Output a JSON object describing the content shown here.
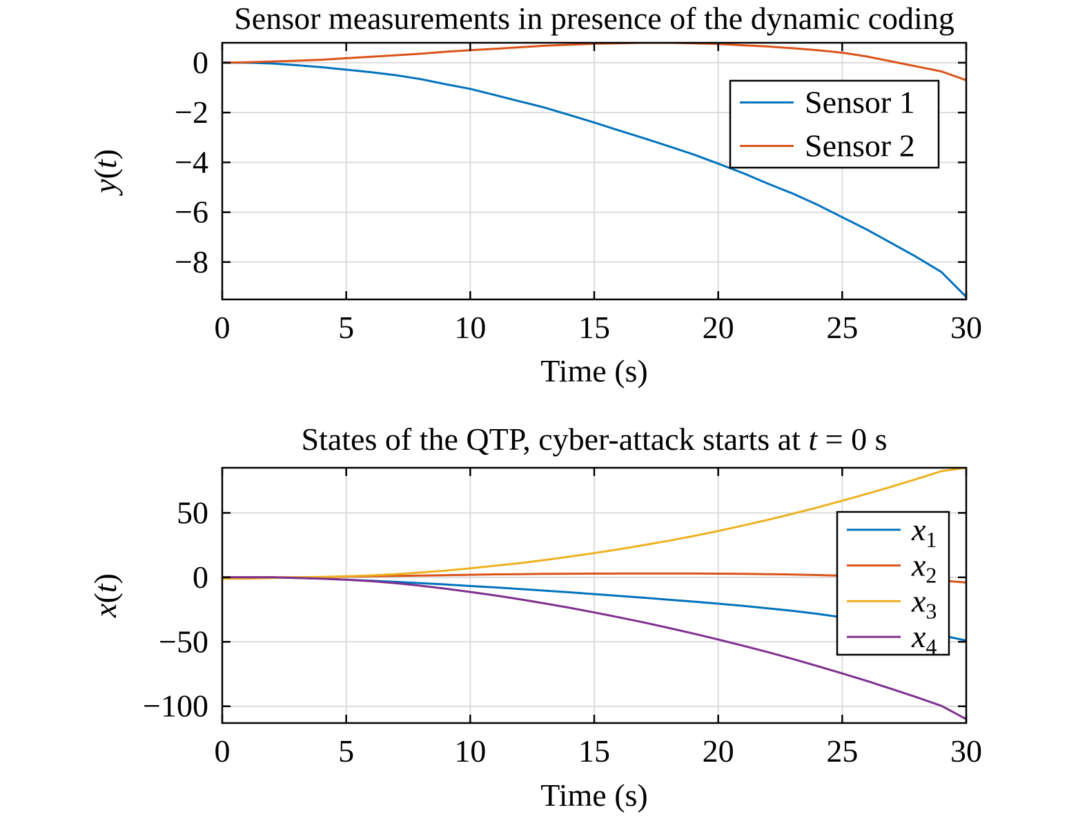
{
  "chart_data": [
    {
      "type": "line",
      "title": "Sensor measurements in presence of the dynamic coding",
      "xlabel": "Time (s)",
      "ylabel": "y(t)",
      "xlim": [
        0,
        30
      ],
      "ylim": [
        -9.5,
        0.8
      ],
      "xticks": [
        0,
        5,
        10,
        15,
        20,
        25,
        30
      ],
      "xtick_labels": [
        "0",
        "5",
        "10",
        "15",
        "20",
        "25",
        "30"
      ],
      "yticks": [
        0,
        -2,
        -4,
        -6,
        -8
      ],
      "ytick_labels": [
        "0",
        "−2",
        "−4",
        "−6",
        "−8"
      ],
      "grid": true,
      "legend_position": "top-right",
      "x": [
        0,
        1,
        2,
        3,
        4,
        5,
        6,
        7,
        8,
        9,
        10,
        11,
        12,
        13,
        14,
        15,
        16,
        17,
        18,
        19,
        20,
        21,
        22,
        23,
        24,
        25,
        26,
        27,
        28,
        29,
        30
      ],
      "series": [
        {
          "name": "Sensor 1",
          "color": "#0072BD",
          "values": [
            0,
            0,
            -0.03,
            -0.1,
            -0.18,
            -0.28,
            -0.38,
            -0.5,
            -0.66,
            -0.86,
            -1.05,
            -1.3,
            -1.55,
            -1.8,
            -2.1,
            -2.4,
            -2.72,
            -3.03,
            -3.35,
            -3.68,
            -4.05,
            -4.43,
            -4.85,
            -5.25,
            -5.7,
            -6.2,
            -6.7,
            -7.25,
            -7.8,
            -8.4,
            -9.4
          ]
        },
        {
          "name": "Sensor 2",
          "color": "#D95319",
          "values": [
            0,
            0.02,
            0.05,
            0.08,
            0.12,
            0.18,
            0.24,
            0.3,
            0.36,
            0.44,
            0.5,
            0.56,
            0.62,
            0.68,
            0.72,
            0.76,
            0.78,
            0.8,
            0.8,
            0.78,
            0.75,
            0.7,
            0.65,
            0.58,
            0.5,
            0.4,
            0.25,
            0.05,
            -0.15,
            -0.35,
            -0.7
          ]
        }
      ]
    },
    {
      "type": "line",
      "title": "States of the QTP, cyber-attack starts at t = 0 s",
      "xlabel": "Time (s)",
      "ylabel": "x(t)",
      "xlim": [
        0,
        30
      ],
      "ylim": [
        -113,
        85
      ],
      "xticks": [
        0,
        5,
        10,
        15,
        20,
        25,
        30
      ],
      "xtick_labels": [
        "0",
        "5",
        "10",
        "15",
        "20",
        "25",
        "30"
      ],
      "yticks": [
        50,
        0,
        -50,
        -100
      ],
      "ytick_labels": [
        "50",
        "0",
        "−50",
        "−100"
      ],
      "grid": true,
      "legend_position": "right",
      "x": [
        0,
        1,
        2,
        3,
        4,
        5,
        6,
        7,
        8,
        9,
        10,
        11,
        12,
        13,
        14,
        15,
        16,
        17,
        18,
        19,
        20,
        21,
        22,
        23,
        24,
        25,
        26,
        27,
        28,
        29,
        30
      ],
      "series": [
        {
          "name": "x1",
          "color": "#0072BD",
          "values": [
            0,
            0,
            0,
            -0.5,
            -1,
            -1.8,
            -2.6,
            -3.5,
            -4.5,
            -5.5,
            -6.7,
            -7.8,
            -9,
            -10.3,
            -11.6,
            -13,
            -14.4,
            -15.8,
            -17.3,
            -18.8,
            -20.4,
            -22.1,
            -24,
            -26,
            -28.3,
            -31,
            -34,
            -37.5,
            -41.2,
            -45,
            -49
          ]
        },
        {
          "name": "x2",
          "color": "#D95319",
          "values": [
            0,
            0,
            0,
            0,
            0.2,
            0.5,
            0.8,
            1.1,
            1.4,
            1.7,
            2,
            2.3,
            2.5,
            2.7,
            2.8,
            2.9,
            2.95,
            3,
            3,
            2.95,
            2.85,
            2.7,
            2.5,
            2.2,
            1.8,
            1.3,
            0.6,
            -0.3,
            -1.3,
            -2.5,
            -4
          ]
        },
        {
          "name": "x3",
          "color": "#EDB120",
          "values": [
            -1,
            -1,
            -0.5,
            0,
            0.3,
            0.8,
            1.5,
            2.5,
            3.8,
            5.2,
            7,
            9,
            11,
            13.4,
            16,
            18.8,
            21.8,
            25,
            28.4,
            32,
            36,
            40.2,
            44.6,
            49.3,
            54.2,
            59.4,
            64.8,
            70.4,
            76.3,
            82.4,
            85
          ]
        },
        {
          "name": "x4",
          "color": "#7E2F8E",
          "values": [
            0,
            0,
            0,
            -0.5,
            -1,
            -1.8,
            -3,
            -4.5,
            -6.5,
            -8.8,
            -11.3,
            -14,
            -17,
            -20.2,
            -23.6,
            -27.2,
            -31,
            -35,
            -39.2,
            -43.6,
            -48.2,
            -53,
            -58,
            -63.3,
            -68.8,
            -74.5,
            -80.4,
            -86.6,
            -93,
            -99.7,
            -110
          ]
        }
      ]
    }
  ]
}
